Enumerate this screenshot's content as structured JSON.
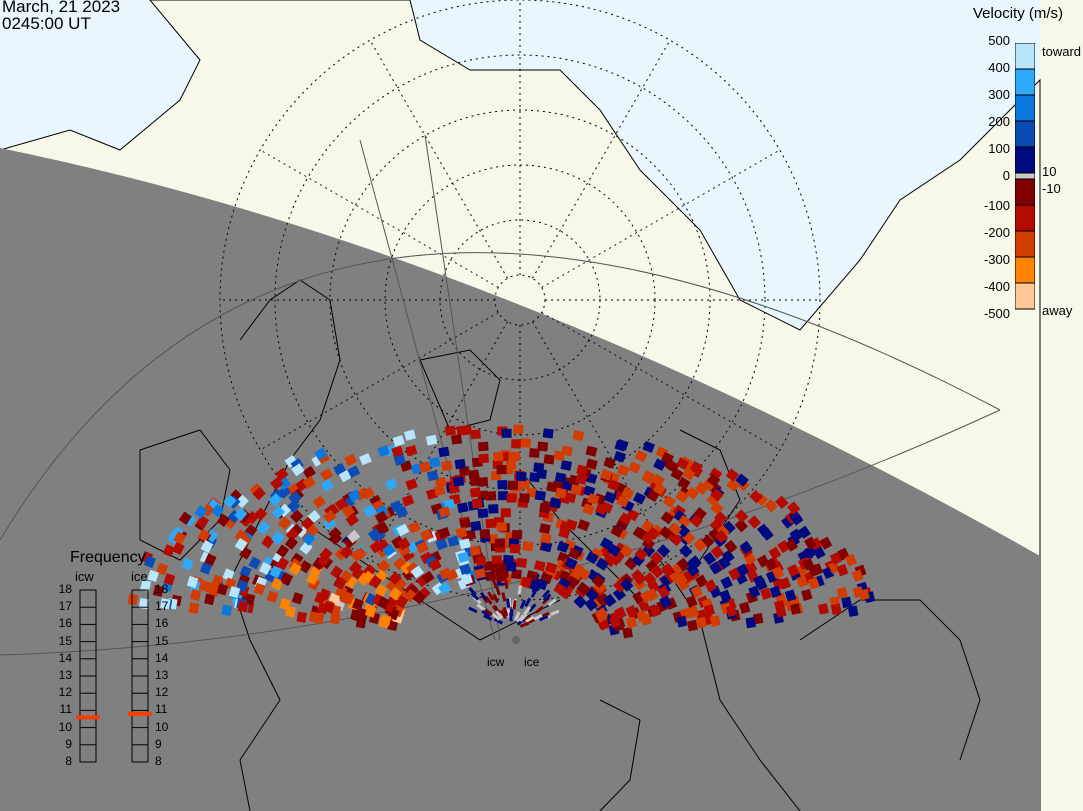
{
  "header": {
    "date": "March, 21 2023",
    "time": "0245:00 UT"
  },
  "colorbar": {
    "title": "Velocity (m/s)",
    "ticks": [
      "500",
      "400",
      "300",
      "200",
      "100",
      "0",
      "-100",
      "-200",
      "-300",
      "-400",
      "-500"
    ],
    "toward_label": "toward",
    "away_label": "away",
    "plus_threshold": "10",
    "minus_threshold": "-10",
    "toward_colors": [
      "#b8e4fc",
      "#2ea8f8",
      "#0a78dc",
      "#0a4cb4",
      "#000a80"
    ],
    "ground_scatter_color": "#c8c8c8",
    "away_colors": [
      "#800000",
      "#b40a00",
      "#d23c00",
      "#ff8200",
      "#ffc896"
    ]
  },
  "frequency": {
    "title": "Frequency",
    "unit_ticks": [
      "18",
      "17",
      "16",
      "15",
      "14",
      "13",
      "12",
      "11",
      "10",
      "9",
      "8"
    ],
    "radars": [
      {
        "name": "icw",
        "frequency_mhz": 10.6
      },
      {
        "name": "ice",
        "frequency_mhz": 10.8
      }
    ],
    "marker_color": "#ff3c00"
  },
  "map": {
    "ocean_color": "#eaf6fd",
    "land_color": "#f8f8ea",
    "night_color": "#808080",
    "radar_labels": [
      "icw",
      "ice"
    ]
  }
}
